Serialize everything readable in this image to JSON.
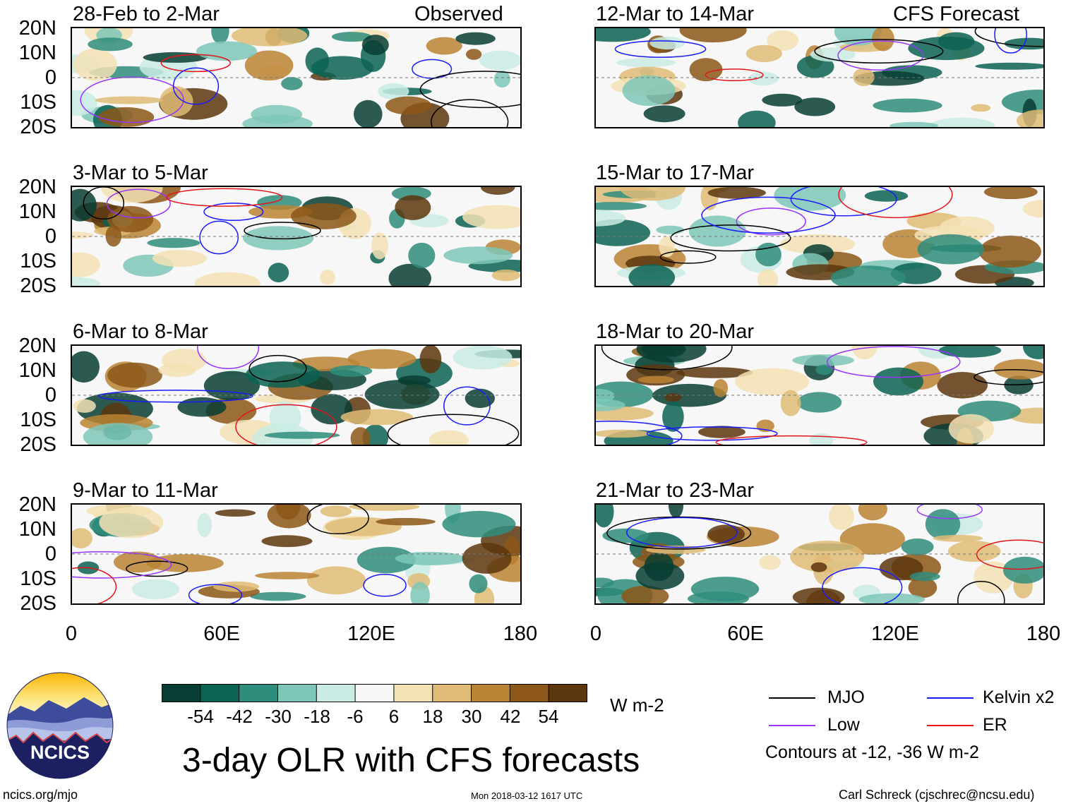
{
  "panels": {
    "left": [
      {
        "title": "28-Feb to 2-Mar",
        "tag": "Observed"
      },
      {
        "title": "3-Mar to 5-Mar"
      },
      {
        "title": "6-Mar to 8-Mar"
      },
      {
        "title": "9-Mar to 11-Mar"
      }
    ],
    "right": [
      {
        "title": "12-Mar to 14-Mar",
        "tag": "CFS Forecast"
      },
      {
        "title": "15-Mar to 17-Mar"
      },
      {
        "title": "18-Mar to 20-Mar"
      },
      {
        "title": "21-Mar to 23-Mar"
      }
    ]
  },
  "axes": {
    "lat_ticks": [
      "20N",
      "10N",
      "0",
      "10S",
      "20S"
    ],
    "lon_ticks": [
      "0",
      "60E",
      "120E",
      "180"
    ],
    "lat_range": [
      -20,
      20
    ],
    "lon_range": [
      0,
      180
    ]
  },
  "colorbar": {
    "levels": [
      "-54",
      "-42",
      "-30",
      "-18",
      "-6",
      "6",
      "18",
      "30",
      "42",
      "54"
    ],
    "colors": [
      "#083d33",
      "#0b6353",
      "#2f8d7d",
      "#7ec7b8",
      "#c9ece4",
      "#f7f7f7",
      "#f3e2b4",
      "#dfbb75",
      "#bb8434",
      "#8c5718",
      "#5c360d"
    ],
    "units": "W m-2"
  },
  "title": "3-day OLR with CFS forecasts",
  "legend": {
    "items": [
      {
        "label": "MJO",
        "color": "#000000"
      },
      {
        "label": "Kelvin x2",
        "color": "#1a1aff"
      },
      {
        "label": "Low",
        "color": "#9933ff"
      },
      {
        "label": "ER",
        "color": "#e6141a"
      }
    ],
    "note": "Contours at -12, -36 W m-2"
  },
  "logo": {
    "text": "NCICS"
  },
  "footer": {
    "url": "ncics.org/mjo",
    "timestamp": "Mon 2018-03-12 1617 UTC",
    "credit": "Carl Schreck (cjschrec@ncsu.edu)"
  }
}
